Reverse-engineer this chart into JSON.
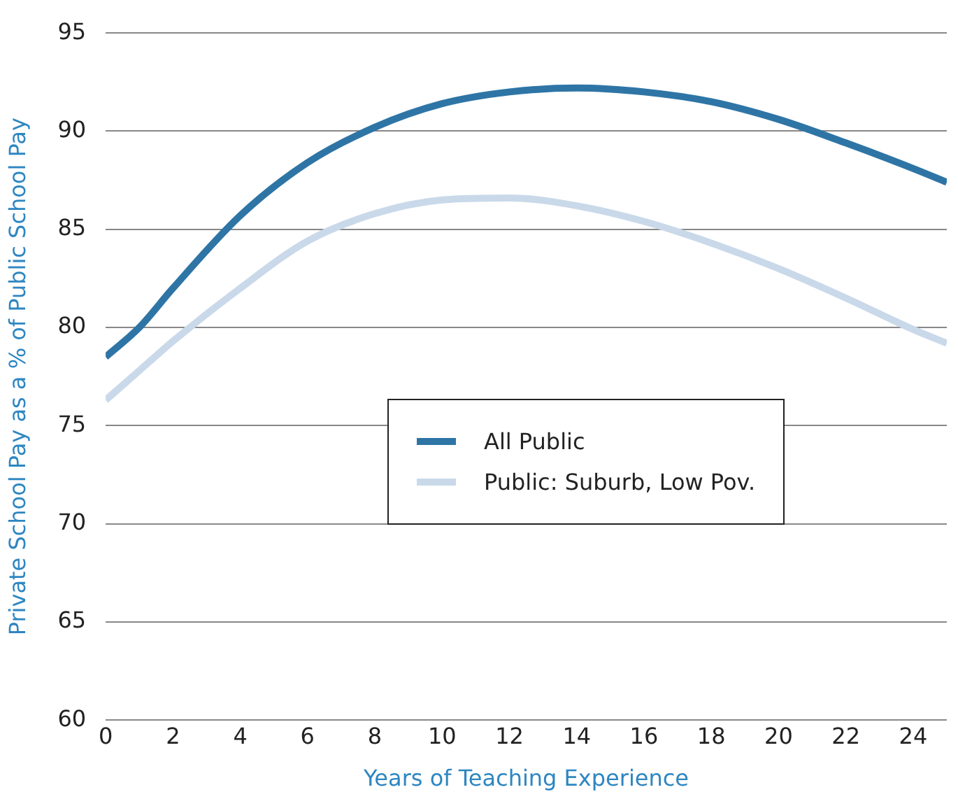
{
  "chart_data": {
    "type": "line",
    "xlabel": "Years of Teaching Experience",
    "ylabel": "Private School Pay as a % of Public School Pay",
    "x": [
      0,
      1,
      2,
      4,
      6,
      8,
      10,
      12,
      14,
      16,
      18,
      20,
      22,
      24,
      25
    ],
    "series": [
      {
        "name": "All Public",
        "color": "#2e75a6",
        "values": [
          78.5,
          80.0,
          82.0,
          85.7,
          88.4,
          90.2,
          91.4,
          92.0,
          92.2,
          92.0,
          91.5,
          90.6,
          89.4,
          88.1,
          87.4
        ]
      },
      {
        "name": "Public: Suburb, Low Pov.",
        "color": "#c9d9ea",
        "values": [
          76.3,
          77.8,
          79.3,
          82.0,
          84.4,
          85.8,
          86.5,
          86.6,
          86.2,
          85.4,
          84.3,
          83.0,
          81.5,
          79.9,
          79.2
        ]
      }
    ],
    "xlim": [
      0,
      25
    ],
    "xticks": [
      0,
      2,
      4,
      6,
      8,
      10,
      12,
      14,
      16,
      18,
      20,
      22,
      24
    ],
    "ylim": [
      60,
      95
    ],
    "yticks": [
      60,
      65,
      70,
      75,
      80,
      85,
      90,
      95
    ],
    "grid": "y",
    "legend": "center",
    "marker": "none",
    "line_style": "solid"
  }
}
